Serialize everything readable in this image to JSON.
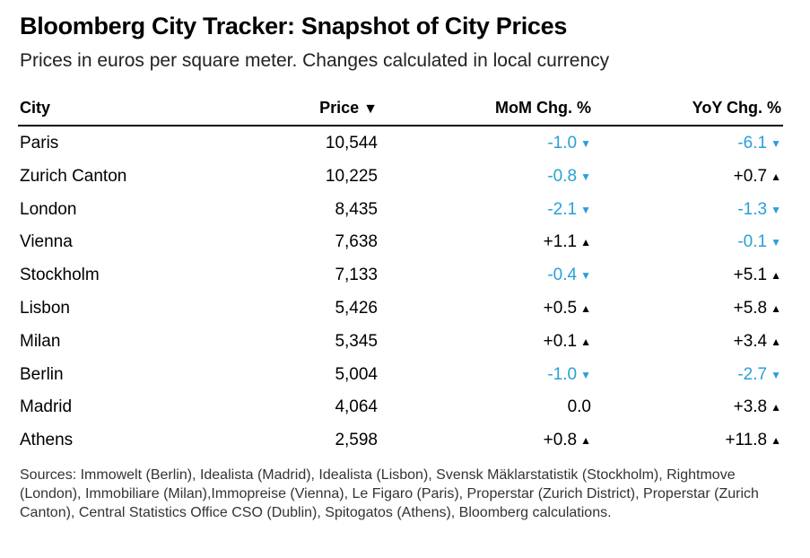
{
  "chart_data": {
    "type": "table",
    "title": "Bloomberg City Tracker: Snapshot of City Prices",
    "subtitle": "Prices in euros per square meter. Changes calculated in local currency",
    "columns": [
      "City",
      "Price",
      "MoM Chg. %",
      "YoY Chg. %"
    ],
    "sort_indicator": "▼",
    "rows": [
      {
        "city": "Paris",
        "price": "10,544",
        "mom": "-1.0",
        "yoy": "-6.1"
      },
      {
        "city": "Zurich Canton",
        "price": "10,225",
        "mom": "-0.8",
        "yoy": "+0.7"
      },
      {
        "city": "London",
        "price": "8,435",
        "mom": "-2.1",
        "yoy": "-1.3"
      },
      {
        "city": "Vienna",
        "price": "7,638",
        "mom": "+1.1",
        "yoy": "-0.1"
      },
      {
        "city": "Stockholm",
        "price": "7,133",
        "mom": "-0.4",
        "yoy": "+5.1"
      },
      {
        "city": "Lisbon",
        "price": "5,426",
        "mom": "+0.5",
        "yoy": "+5.8"
      },
      {
        "city": "Milan",
        "price": "5,345",
        "mom": "+0.1",
        "yoy": "+3.4"
      },
      {
        "city": "Berlin",
        "price": "5,004",
        "mom": "-1.0",
        "yoy": "-2.7"
      },
      {
        "city": "Madrid",
        "price": "4,064",
        "mom": "0.0",
        "yoy": "+3.8"
      },
      {
        "city": "Athens",
        "price": "2,598",
        "mom": "+0.8",
        "yoy": "+11.8"
      }
    ],
    "sources": "Sources: Immowelt (Berlin), Idealista (Madrid), Idealista (Lisbon), Svensk Mäklarstatistik (Stockholm), Rightmove (London), Immobiliare (Milan),Immopreise (Vienna), Le Figaro (Paris), Properstar (Zurich District), Properstar (Zurich Canton), Central Statistics Office CSO (Dublin), Spitogatos (Athens), Bloomberg calculations."
  },
  "colors": {
    "negative": "#2a9fd9",
    "positive": "#000000"
  },
  "symbols": {
    "up": "▲",
    "down": "▼"
  }
}
